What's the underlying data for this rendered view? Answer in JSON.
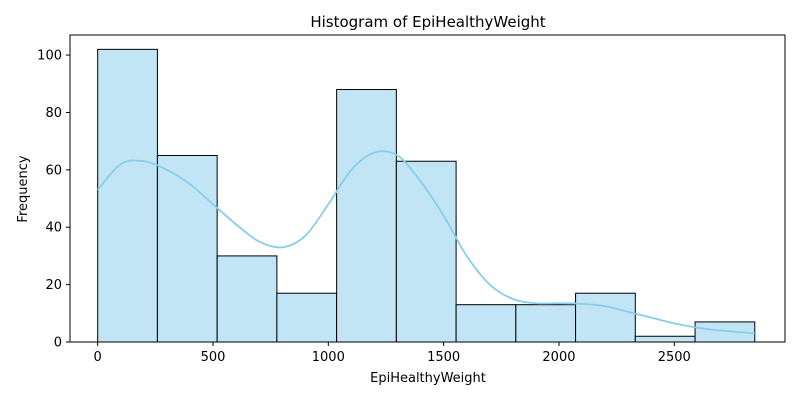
{
  "chart_data": {
    "type": "histogram",
    "title": "Histogram of EpiHealthyWeight",
    "xlabel": "EpiHealthyWeight",
    "ylabel": "Frequency",
    "xlim": [
      -120,
      2980
    ],
    "ylim": [
      0,
      107
    ],
    "x_ticks": [
      0,
      500,
      1000,
      1500,
      2000,
      2500
    ],
    "y_ticks": [
      0,
      20,
      40,
      60,
      80,
      100
    ],
    "bins": [
      {
        "start": 0,
        "end": 259,
        "count": 102
      },
      {
        "start": 259,
        "end": 518,
        "count": 65
      },
      {
        "start": 518,
        "end": 777,
        "count": 30
      },
      {
        "start": 777,
        "end": 1036,
        "count": 17
      },
      {
        "start": 1036,
        "end": 1295,
        "count": 88
      },
      {
        "start": 1295,
        "end": 1554,
        "count": 63
      },
      {
        "start": 1554,
        "end": 1813,
        "count": 13
      },
      {
        "start": 1813,
        "end": 2072,
        "count": 13
      },
      {
        "start": 2072,
        "end": 2331,
        "count": 17
      },
      {
        "start": 2331,
        "end": 2590,
        "count": 2
      },
      {
        "start": 2590,
        "end": 2849,
        "count": 7
      }
    ],
    "kde": {
      "x": [
        0,
        100,
        200,
        300,
        400,
        500,
        600,
        700,
        800,
        900,
        1000,
        1100,
        1200,
        1300,
        1400,
        1500,
        1600,
        1700,
        1800,
        1900,
        2000,
        2100,
        2200,
        2300,
        2400,
        2500,
        2600,
        2700,
        2849
      ],
      "y": [
        53,
        62,
        63,
        60,
        55,
        48,
        41,
        35,
        33,
        37,
        48,
        60,
        66,
        65,
        56,
        44,
        30,
        20,
        15,
        13.5,
        13.5,
        13.3,
        12.5,
        10.5,
        8.5,
        6.5,
        5,
        4,
        3
      ]
    },
    "grid": false,
    "colors": {
      "bar_fill": "#c1e5f4",
      "bar_edge": "#000000",
      "kde_line": "#87ceeb"
    }
  }
}
